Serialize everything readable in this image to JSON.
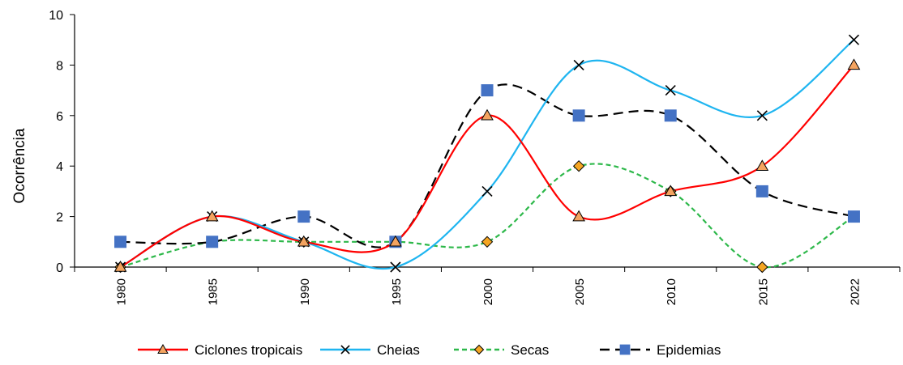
{
  "chart_data": {
    "type": "line",
    "title": "",
    "xlabel": "",
    "ylabel": "Ocorrência",
    "ylim": [
      0,
      10
    ],
    "yticks": [
      0,
      2,
      4,
      6,
      8,
      10
    ],
    "categories": [
      "1980",
      "1985",
      "1990",
      "1995",
      "2000",
      "2005",
      "2010",
      "2015",
      "2022"
    ],
    "grid": false,
    "legend_position": "bottom",
    "smoothed": true,
    "series": [
      {
        "name": "Ciclones tropicais",
        "values": [
          0,
          2,
          1,
          1,
          6,
          2,
          3,
          4,
          8
        ],
        "color": "#ff0000",
        "dash": "solid",
        "marker": "triangle",
        "marker_color": "#f4a460"
      },
      {
        "name": "Cheias",
        "values": [
          0,
          2,
          1,
          0,
          3,
          8,
          7,
          6,
          9
        ],
        "color": "#1fb5f0",
        "dash": "solid",
        "marker": "x-mark",
        "marker_color": "#000000"
      },
      {
        "name": "Secas",
        "values": [
          0,
          1,
          1,
          1,
          1,
          4,
          3,
          0,
          2
        ],
        "color": "#2db84a",
        "dash": "dashed",
        "marker": "diamond",
        "marker_color": "#f5a623"
      },
      {
        "name": "Epidemias",
        "values": [
          1,
          1,
          2,
          1,
          7,
          6,
          6,
          3,
          2
        ],
        "color": "#000000",
        "dash": "long-dashed",
        "marker": "square",
        "marker_color": "#4472c4"
      }
    ]
  }
}
